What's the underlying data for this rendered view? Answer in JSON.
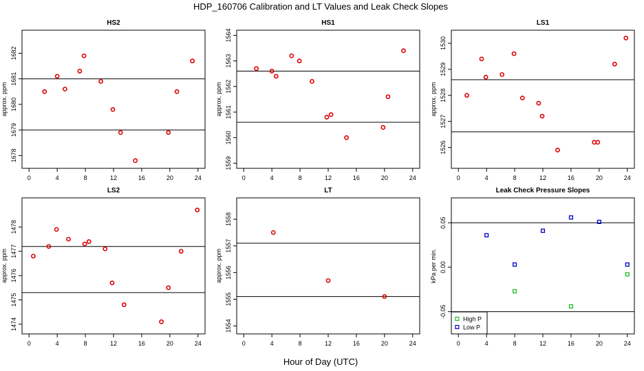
{
  "figure": {
    "title": "HDP_160706  Calibration and LT Values and Leak Check Slopes",
    "xlabel": "Hour of Day (UTC)"
  },
  "colors": {
    "red": "#dd0000",
    "green": "#22bb22",
    "blue": "#0000cc",
    "axis": "#000000"
  },
  "chart_data": [
    {
      "type": "scatter",
      "title": "HS2",
      "ylabel": "approx. ppm",
      "xlim": [
        -1,
        25
      ],
      "ylim": [
        1677.5,
        1682.9
      ],
      "xticks": [
        0,
        4,
        8,
        12,
        16,
        20,
        24
      ],
      "yticks": [
        1678,
        1679,
        1680,
        1681,
        1682
      ],
      "hlines": [
        1681.0,
        1679.0
      ],
      "series": [
        {
          "name": "HS2",
          "color": "red",
          "x": [
            2.2,
            4.0,
            5.1,
            7.2,
            7.8,
            10.2,
            11.9,
            13.0,
            15.1,
            19.8,
            21.0,
            23.2
          ],
          "y": [
            1680.5,
            1681.1,
            1680.6,
            1681.3,
            1681.9,
            1680.9,
            1679.8,
            1678.9,
            1677.8,
            1678.9,
            1680.5,
            1681.7
          ]
        }
      ]
    },
    {
      "type": "scatter",
      "title": "HS1",
      "ylabel": "approx. ppm",
      "xlim": [
        -1,
        25
      ],
      "ylim": [
        1558.8,
        1564.2
      ],
      "xticks": [
        0,
        4,
        8,
        12,
        16,
        20,
        24
      ],
      "yticks": [
        1559,
        1560,
        1561,
        1562,
        1563,
        1564
      ],
      "hlines": [
        1562.6,
        1560.6
      ],
      "series": [
        {
          "name": "HS1",
          "color": "red",
          "x": [
            1.8,
            4.0,
            4.6,
            6.8,
            7.9,
            9.7,
            11.8,
            12.4,
            14.6,
            19.8,
            20.5,
            22.7
          ],
          "y": [
            1562.7,
            1562.6,
            1562.4,
            1563.2,
            1563.0,
            1562.2,
            1560.8,
            1560.9,
            1560.0,
            1560.4,
            1561.6,
            1563.4
          ]
        }
      ]
    },
    {
      "type": "scatter",
      "title": "LS1",
      "ylabel": "approx. ppm",
      "xlim": [
        -1,
        25
      ],
      "ylim": [
        1525.2,
        1530.5
      ],
      "xticks": [
        0,
        4,
        8,
        12,
        16,
        20,
        24
      ],
      "yticks": [
        1526,
        1527,
        1528,
        1529,
        1530
      ],
      "hlines": [
        1528.6,
        1526.6
      ],
      "series": [
        {
          "name": "LS1",
          "color": "red",
          "x": [
            1.2,
            3.3,
            3.9,
            6.2,
            7.9,
            9.1,
            11.4,
            11.9,
            14.1,
            19.3,
            19.8,
            22.2,
            23.8
          ],
          "y": [
            1528.0,
            1529.4,
            1528.7,
            1528.8,
            1529.6,
            1527.9,
            1527.7,
            1527.2,
            1525.9,
            1526.2,
            1526.2,
            1529.2,
            1530.2
          ]
        }
      ]
    },
    {
      "type": "scatter",
      "title": "LS2",
      "ylabel": "approx. ppm",
      "xlim": [
        -1,
        25
      ],
      "ylim": [
        1473.6,
        1479.2
      ],
      "xticks": [
        0,
        4,
        8,
        12,
        16,
        20,
        24
      ],
      "yticks": [
        1474,
        1475,
        1476,
        1477,
        1478
      ],
      "hlines": [
        1477.2,
        1475.3
      ],
      "series": [
        {
          "name": "LS2",
          "color": "red",
          "x": [
            0.6,
            2.8,
            3.9,
            5.6,
            7.9,
            8.5,
            10.8,
            11.8,
            13.5,
            18.8,
            19.8,
            21.6,
            23.9
          ],
          "y": [
            1476.8,
            1477.2,
            1477.9,
            1477.5,
            1477.3,
            1477.4,
            1477.1,
            1475.7,
            1474.8,
            1474.1,
            1475.5,
            1477.0,
            1478.7
          ]
        }
      ]
    },
    {
      "type": "scatter",
      "title": "LT",
      "ylabel": "approx. ppm",
      "xlim": [
        -1,
        25
      ],
      "ylim": [
        1553.7,
        1558.8
      ],
      "xticks": [
        0,
        4,
        8,
        12,
        16,
        20,
        24
      ],
      "yticks": [
        1554,
        1555,
        1556,
        1557,
        1558
      ],
      "hlines": [
        1557.1,
        1555.1
      ],
      "series": [
        {
          "name": "LT",
          "color": "red",
          "x": [
            4.2,
            12.0,
            20.0
          ],
          "y": [
            1557.5,
            1555.7,
            1555.1
          ]
        }
      ]
    },
    {
      "type": "scatter",
      "title": "Leak Check Pressure Slopes",
      "ylabel": "kPa per min.",
      "xlim": [
        -1,
        25
      ],
      "ylim": [
        -0.075,
        0.078
      ],
      "xticks": [
        0,
        4,
        8,
        12,
        16,
        20,
        24
      ],
      "yticks": [
        -0.05,
        0.0,
        0.05
      ],
      "ytick_labels": [
        "-0.05",
        "0.00",
        "0.05"
      ],
      "hlines": [
        0.05,
        -0.05
      ],
      "legend": [
        "High P",
        "Low P"
      ],
      "series": [
        {
          "name": "High P",
          "color": "green",
          "x": [
            8,
            16,
            24
          ],
          "y": [
            -0.027,
            -0.044,
            -0.008
          ]
        },
        {
          "name": "Low P",
          "color": "blue",
          "x": [
            4,
            8,
            12,
            16,
            20,
            24
          ],
          "y": [
            0.036,
            0.003,
            0.041,
            0.056,
            0.051,
            0.003
          ]
        }
      ]
    }
  ]
}
